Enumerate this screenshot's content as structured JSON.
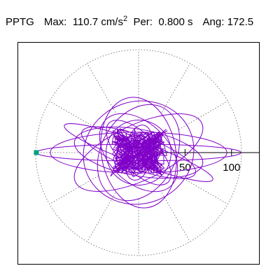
{
  "header": {
    "station": "PPTG",
    "max_label": "Max:",
    "max_value": "110.7",
    "max_unit": "cm/s",
    "max_unit_exp": "2",
    "per_label": "Per:",
    "per_value": "0.800 s",
    "ang_label": "Ang:",
    "ang_value": "172.5"
  },
  "chart_data": {
    "type": "polar-particle-motion",
    "title": "",
    "xlabel": "",
    "ylabel": "",
    "max_amplitude": 110.7,
    "angle_deg": 172.5,
    "ring_values": [
      50,
      100
    ],
    "tick_labels": [
      "50",
      "100"
    ],
    "radial_spokes_deg": [
      0,
      30,
      60,
      90,
      120,
      150,
      180,
      210,
      240,
      270,
      300,
      330
    ],
    "grid": true,
    "trace_color": "#8000c8",
    "max_marker_color": "#00a080",
    "max_marker_point": [
      -110.0,
      0.0
    ],
    "trace_loops": [
      {
        "rx": 110,
        "ry": 9,
        "rot": 0
      },
      {
        "rx": 95,
        "ry": 22,
        "rot": 0
      },
      {
        "rx": 60,
        "ry": 55,
        "rot": 20
      },
      {
        "rx": 75,
        "ry": 30,
        "rot": 25
      },
      {
        "rx": 70,
        "ry": 25,
        "rot": -10
      },
      {
        "rx": 55,
        "ry": 40,
        "rot": 60
      },
      {
        "rx": 50,
        "ry": 32,
        "rot": -45
      },
      {
        "rx": 40,
        "ry": 60,
        "rot": 10
      },
      {
        "rx": 45,
        "ry": 20,
        "rot": 135
      },
      {
        "rx": 35,
        "ry": 35,
        "rot": 0
      },
      {
        "rx": 30,
        "ry": 15,
        "rot": 80
      },
      {
        "rx": 25,
        "ry": 20,
        "rot": 30
      },
      {
        "rx": 20,
        "ry": 18,
        "rot": -20
      },
      {
        "rx": 15,
        "ry": 12,
        "rot": 50
      },
      {
        "rx": 85,
        "ry": 12,
        "rot": -20
      },
      {
        "rx": 65,
        "ry": 18,
        "rot": 160
      }
    ]
  }
}
